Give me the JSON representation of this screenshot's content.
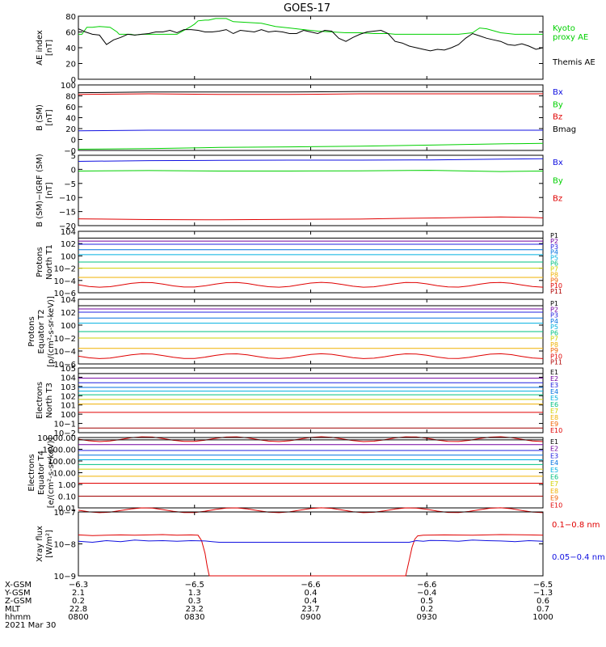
{
  "title": "GOES-17",
  "colors": {
    "green": "#00d000",
    "black": "#000000",
    "red": "#e00000",
    "blue": "#1010e0"
  },
  "chart_data": [
    {
      "type": "line",
      "ylabel": [
        "AE index",
        "[nT]"
      ],
      "ylim": [
        0,
        80
      ],
      "yticks": [
        "0",
        "20",
        "40",
        "60",
        "80"
      ],
      "series": [
        {
          "name": "Kyoto proxy AE",
          "legend": [
            "Kyoto",
            "proxy AE"
          ],
          "color": "#00d000",
          "x": [
            0,
            5,
            12,
            20,
            30,
            45,
            55,
            58,
            70,
            75,
            80,
            90,
            120,
            140,
            160,
            165,
            170,
            180,
            185,
            190,
            195,
            200,
            210,
            220,
            240,
            260,
            280,
            300,
            320,
            340,
            360,
            380,
            400,
            420,
            440,
            450,
            460,
            470,
            480,
            500,
            520,
            540,
            560,
            565,
            570,
            580,
            600,
            620,
            640,
            660
          ],
          "y": [
            57,
            57,
            66,
            66,
            67,
            66,
            60,
            57,
            57,
            57,
            56,
            57,
            57,
            57,
            67,
            70,
            74,
            75,
            75,
            76,
            77,
            77,
            77,
            73,
            72,
            71,
            67,
            65,
            63,
            61,
            60,
            59,
            59,
            58,
            58,
            57,
            57,
            57,
            57,
            57,
            57,
            57,
            59,
            62,
            65,
            64,
            59,
            57,
            57,
            57
          ]
        },
        {
          "name": "Themis AE",
          "legend": [
            "Themis AE"
          ],
          "color": "#000000",
          "x": [
            0,
            10,
            20,
            30,
            40,
            50,
            60,
            70,
            80,
            90,
            100,
            110,
            120,
            130,
            140,
            150,
            160,
            170,
            180,
            190,
            200,
            210,
            220,
            230,
            240,
            250,
            260,
            270,
            280,
            290,
            300,
            310,
            320,
            330,
            340,
            350,
            360,
            370,
            380,
            390,
            400,
            410,
            420,
            430,
            440,
            450,
            460,
            470,
            480,
            490,
            500,
            510,
            520,
            530,
            540,
            550,
            560,
            570,
            580,
            590,
            600,
            610,
            620,
            630,
            640,
            650,
            660
          ],
          "y": [
            64,
            60,
            57,
            56,
            44,
            50,
            53,
            57,
            56,
            57,
            58,
            60,
            60,
            62,
            59,
            63,
            63,
            62,
            60,
            60,
            61,
            63,
            58,
            62,
            61,
            60,
            63,
            60,
            61,
            60,
            58,
            58,
            62,
            60,
            58,
            62,
            61,
            52,
            48,
            53,
            57,
            60,
            61,
            62,
            58,
            48,
            46,
            42,
            40,
            38,
            36,
            38,
            37,
            40,
            44,
            52,
            58,
            55,
            52,
            50,
            48,
            44,
            43,
            45,
            42,
            38,
            40
          ]
        }
      ]
    },
    {
      "type": "line",
      "ylabel": [
        "B (SM)",
        "[nT]"
      ],
      "ylim": [
        -10,
        100
      ],
      "yticks": [
        "−0",
        "0",
        "20",
        "40",
        "60",
        "80",
        "100"
      ],
      "series": [
        {
          "name": "Bx",
          "legend": [
            "Bx"
          ],
          "color": "#1010e0",
          "x": [
            0,
            100,
            200,
            300,
            400,
            500,
            600,
            660
          ],
          "y": [
            23,
            24,
            24,
            24,
            24,
            24,
            24,
            24
          ]
        },
        {
          "name": "By",
          "legend": [
            "By"
          ],
          "color": "#00d000",
          "x": [
            0,
            100,
            200,
            300,
            400,
            500,
            600,
            660
          ],
          "y": [
            -8,
            -7,
            -5,
            -4,
            -3,
            -1,
            1,
            2
          ]
        },
        {
          "name": "Bz",
          "legend": [
            "Bz"
          ],
          "color": "#e00000",
          "x": [
            0,
            100,
            200,
            300,
            400,
            500,
            600,
            660
          ],
          "y": [
            84,
            85,
            84,
            84,
            85,
            85,
            85,
            85
          ]
        },
        {
          "name": "Bmag",
          "legend": [
            "Bmag"
          ],
          "color": "#000000",
          "x": [
            0,
            100,
            200,
            300,
            400,
            500,
            600,
            660
          ],
          "y": [
            87,
            88,
            88,
            88,
            89,
            89,
            89,
            89
          ]
        }
      ]
    },
    {
      "type": "line",
      "ylabel": [
        "B (SM)−IGRF (SM)",
        "[nT]"
      ],
      "ylim": [
        -22,
        7
      ],
      "yticks": [
        "−20",
        "−15",
        "−10",
        "−5",
        "0",
        "5"
      ],
      "series": [
        {
          "name": "Bx",
          "legend": [
            "Bx"
          ],
          "color": "#1010e0",
          "x": [
            0,
            100,
            200,
            300,
            400,
            500,
            600,
            660
          ],
          "y": [
            4.5,
            4.8,
            4.9,
            5.0,
            5.0,
            5.1,
            5.4,
            5.6
          ]
        },
        {
          "name": "By",
          "legend": [
            "By"
          ],
          "color": "#00d000",
          "x": [
            0,
            100,
            200,
            300,
            400,
            500,
            600,
            660
          ],
          "y": [
            0.5,
            0.7,
            0.5,
            0.5,
            0.6,
            0.8,
            0.3,
            0.5
          ]
        },
        {
          "name": "Bz",
          "legend": [
            "Bz"
          ],
          "color": "#e00000",
          "x": [
            0,
            100,
            200,
            300,
            400,
            460,
            520,
            560,
            600,
            640,
            660
          ],
          "y": [
            -19.2,
            -19.5,
            -19.6,
            -19.4,
            -19.3,
            -19.0,
            -18.8,
            -18.6,
            -18.4,
            -18.6,
            -18.8
          ]
        }
      ]
    },
    {
      "type": "line",
      "log": true,
      "ylabel": [
        "Protons",
        "North T1"
      ],
      "ylim": [
        -6,
        4
      ],
      "yticks": [
        "10−6",
        "10−4",
        "10−2",
        "100",
        "102",
        "104"
      ],
      "legend_labels": [
        "P1",
        "P2",
        "P3",
        "P4",
        "P5",
        "P6",
        "P7",
        "P8",
        "P9",
        "P10",
        "P11"
      ],
      "legend_colors": [
        "#000000",
        "#7000a0",
        "#2020e0",
        "#0070e0",
        "#00b0e0",
        "#00c080",
        "#d0d000",
        "#f0b000",
        "#f06000",
        "#e00000",
        "#b00000"
      ],
      "levels": [
        2.9,
        2.4,
        1.9,
        1.0,
        0.2,
        -1.0,
        -2.0,
        -3.5
      ],
      "level_colors": [
        "#000000",
        "#7000a0",
        "#2020e0",
        "#0070e0",
        "#00b0e0",
        "#00c080",
        "#d0d000",
        "#f0b000"
      ]
    },
    {
      "type": "line",
      "log": true,
      "ylabel": [
        "Protons",
        "Equator T2",
        "[p/(cm²-s-sr-keV)]"
      ],
      "ylim": [
        -6,
        4
      ],
      "yticks": [
        "10−6",
        "10−4",
        "10−2",
        "100",
        "102",
        "104"
      ],
      "legend_labels": [
        "P1",
        "P2",
        "P3",
        "P4",
        "P5",
        "P6",
        "P7",
        "P8",
        "P9",
        "P10",
        "P11"
      ],
      "legend_colors": [
        "#000000",
        "#7000a0",
        "#2020e0",
        "#0070e0",
        "#00b0e0",
        "#00c080",
        "#d0d000",
        "#f0b000",
        "#f06000",
        "#e00000",
        "#b00000"
      ],
      "levels": [
        3.0,
        2.5,
        2.0,
        1.1,
        0.3,
        -1.0,
        -2.0,
        -3.6
      ],
      "level_colors": [
        "#000000",
        "#7000a0",
        "#2020e0",
        "#0070e0",
        "#00b0e0",
        "#00c080",
        "#d0d000",
        "#f0b000"
      ]
    },
    {
      "type": "line",
      "log": true,
      "ylabel": [
        "Electrons",
        "North T3"
      ],
      "ylim": [
        -2,
        5
      ],
      "yticks": [
        "10−2",
        "10−1",
        "100",
        "101",
        "102",
        "103",
        "104",
        "105"
      ],
      "legend_labels": [
        "E1",
        "E2",
        "E3",
        "E4",
        "E5",
        "E6",
        "E7",
        "E8",
        "E9",
        "E10"
      ],
      "legend_colors": [
        "#000000",
        "#7000a0",
        "#2020e0",
        "#0070e0",
        "#00b0e0",
        "#00c080",
        "#d0d000",
        "#f0b000",
        "#f06000",
        "#e00000"
      ],
      "levels": [
        4.4,
        3.9,
        3.4,
        2.9,
        2.5,
        2.1,
        1.6,
        1.1,
        0.2,
        -1.5
      ],
      "level_colors": [
        "#000000",
        "#7000a0",
        "#2020e0",
        "#0070e0",
        "#00b0e0",
        "#00c080",
        "#d0d000",
        "#f0b000",
        "#e00000",
        "#a00000"
      ]
    },
    {
      "type": "line",
      "log": true,
      "ylabel": [
        "Electrons",
        "Equator T4",
        "[e/(cm²-s-sr-keV)]"
      ],
      "ylim": [
        -2,
        4
      ],
      "yticks": [
        "0.01",
        "0.10",
        "1.00",
        "10.00",
        "100.00",
        "1000.00",
        "10000.00"
      ],
      "legend_labels": [
        "E1",
        "E2",
        "E3",
        "E4",
        "E5",
        "E6",
        "E7",
        "E8",
        "E9",
        "E10"
      ],
      "legend_colors": [
        "#000000",
        "#7000a0",
        "#2020e0",
        "#0070e0",
        "#00b0e0",
        "#00c080",
        "#d0d000",
        "#f0b000",
        "#f06000",
        "#e00000"
      ],
      "levels": [
        3.8,
        3.4,
        2.9,
        2.5,
        2.1,
        1.7,
        1.3,
        0.7,
        0.1,
        -1.0
      ],
      "level_colors": [
        "#000000",
        "#7000a0",
        "#2020e0",
        "#0070e0",
        "#00b0e0",
        "#00c080",
        "#d0d000",
        "#f0b000",
        "#e00000",
        "#a00000"
      ]
    },
    {
      "type": "line",
      "log": true,
      "ylabel": [
        "Xray flux",
        "[W/m²]"
      ],
      "ylim": [
        -9,
        -7
      ],
      "yticks": [
        "10−9",
        "10−8",
        "10−7"
      ],
      "series": [
        {
          "name": "0.1-0.8 nm",
          "legend": [
            "0.1−0.8 nm"
          ],
          "color": "#e00000",
          "x": [
            0,
            20,
            40,
            60,
            80,
            100,
            120,
            140,
            160,
            170,
            175,
            180,
            183,
            186,
            190,
            460,
            465,
            470,
            474,
            478,
            482,
            490,
            520,
            560,
            600,
            640,
            660
          ],
          "y": [
            -7.72,
            -7.74,
            -7.73,
            -7.72,
            -7.73,
            -7.72,
            -7.71,
            -7.73,
            -7.72,
            -7.73,
            -7.9,
            -8.3,
            -8.7,
            -9.0,
            -9.3,
            -9.3,
            -9.0,
            -8.5,
            -8.1,
            -7.85,
            -7.75,
            -7.73,
            -7.72,
            -7.73,
            -7.71,
            -7.72,
            -7.73
          ]
        },
        {
          "name": "0.05-0.4 nm",
          "legend": [
            "0.05−0.4 nm"
          ],
          "color": "#1010e0",
          "x": [
            0,
            20,
            40,
            60,
            80,
            100,
            120,
            140,
            160,
            180,
            190,
            200,
            470,
            480,
            490,
            500,
            520,
            540,
            560,
            580,
            600,
            620,
            640,
            660
          ],
          "y": [
            -7.92,
            -7.95,
            -7.9,
            -7.93,
            -7.88,
            -7.91,
            -7.9,
            -7.92,
            -7.9,
            -7.91,
            -7.93,
            -7.95,
            -7.95,
            -7.9,
            -7.92,
            -7.89,
            -7.9,
            -7.92,
            -7.88,
            -7.9,
            -7.91,
            -7.93,
            -7.9,
            -7.92
          ]
        }
      ]
    }
  ],
  "x_axis": {
    "rows": [
      {
        "label": "X-GSM",
        "values": [
          "−6.3",
          "−6.5",
          "−6.6",
          "−6.6",
          "−6.5"
        ]
      },
      {
        "label": "Y-GSM",
        "values": [
          "2.1",
          "1.3",
          "0.4",
          "−0.4",
          "−1.3"
        ]
      },
      {
        "label": "Z-GSM",
        "values": [
          "0.2",
          "0.3",
          "0.4",
          "0.5",
          "0.6"
        ]
      },
      {
        "label": "MLT",
        "values": [
          "22.8",
          "23.2",
          "23.7",
          "0.2",
          "0.7"
        ]
      },
      {
        "label": "hhmm",
        "values": [
          "0800",
          "0830",
          "0900",
          "0930",
          "1000"
        ]
      }
    ],
    "date": "2021 Mar 30"
  }
}
